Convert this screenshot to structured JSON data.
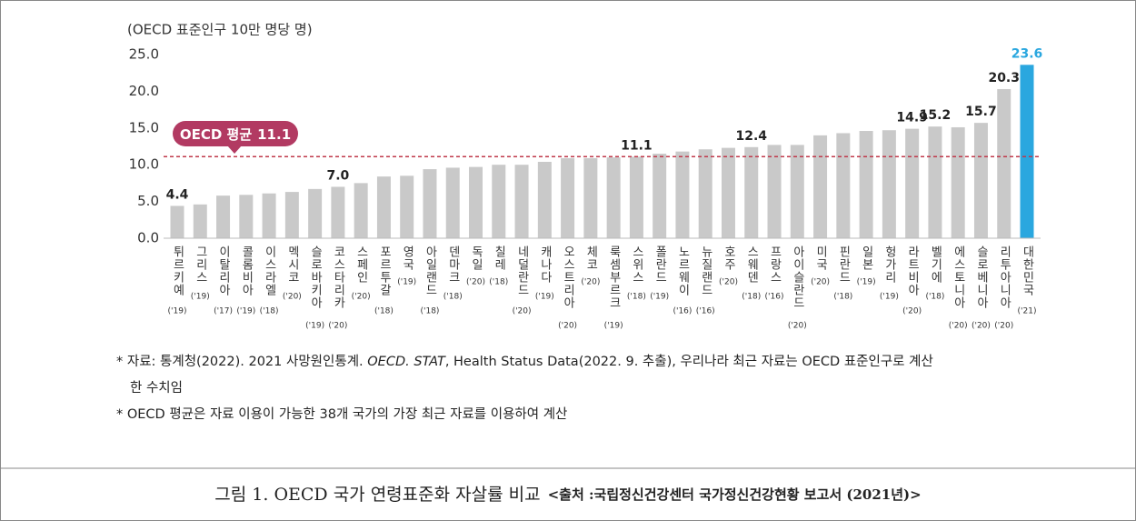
{
  "chart_data": {
    "type": "bar",
    "axis_label": "(OECD 표준인구 10만 명당 명)",
    "categories": [
      "튀르키예",
      "그리스",
      "이탈리아",
      "콜롬비아",
      "이스라엘",
      "멕시코",
      "슬로바키아",
      "코스타리카",
      "스페인",
      "포르투갈",
      "영국",
      "아일랜드",
      "덴마크",
      "독일",
      "칠레",
      "네덜란드",
      "캐나다",
      "오스트리아",
      "체코",
      "룩셈부르크",
      "스위스",
      "폴란드",
      "노르웨이",
      "뉴질랜드",
      "호주",
      "스웨덴",
      "프랑스",
      "아이슬란드",
      "미국",
      "핀란드",
      "일본",
      "헝가리",
      "라트비아",
      "벨기에",
      "에스토니아",
      "슬로베니아",
      "리투아니아",
      "대한민국"
    ],
    "years": [
      "('19)",
      "('19)",
      "('17)",
      "('19)",
      "('18)",
      "('20)",
      "('19)",
      "('20)",
      "('20)",
      "('18)",
      "('19)",
      "('18)",
      "('18)",
      "('20)",
      "('18)",
      "('20)",
      "('19)",
      "('20)",
      "('20)",
      "('19)",
      "('18)",
      "('19)",
      "('16)",
      "('16)",
      "('20)",
      "('18)",
      "('16)",
      "('20)",
      "('20)",
      "('18)",
      "('19)",
      "('19)",
      "('20)",
      "('18)",
      "('20)",
      "('20)",
      "('20)",
      "('21)"
    ],
    "values": [
      4.4,
      4.6,
      5.8,
      5.9,
      6.1,
      6.3,
      6.7,
      7.0,
      7.5,
      8.4,
      8.5,
      9.4,
      9.6,
      9.7,
      10.0,
      10.0,
      10.4,
      10.9,
      10.9,
      11.0,
      11.1,
      11.5,
      11.8,
      12.1,
      12.3,
      12.4,
      12.7,
      12.7,
      14.0,
      14.3,
      14.6,
      14.7,
      14.9,
      15.2,
      15.1,
      15.7,
      20.3,
      23.6
    ],
    "value_labels": [
      "4.4",
      null,
      null,
      null,
      null,
      null,
      null,
      "7.0",
      null,
      null,
      null,
      null,
      null,
      null,
      null,
      null,
      null,
      null,
      null,
      null,
      "11.1",
      null,
      null,
      null,
      null,
      "12.4",
      null,
      null,
      null,
      null,
      null,
      null,
      "14.9",
      "15.2",
      null,
      "15.7",
      "20.3",
      "23.6"
    ],
    "color": "#c9c9c9",
    "highlight_category": "대한민국",
    "highlight_color": "#2aa7df",
    "ylim": [
      0,
      25
    ],
    "yticks": [
      {
        "value": 0,
        "label": "0.0"
      },
      {
        "value": 5,
        "label": "5.0"
      },
      {
        "value": 10,
        "label": "10.0"
      },
      {
        "value": 15,
        "label": "15.0"
      },
      {
        "value": 20,
        "label": "20.0"
      },
      {
        "value": 25,
        "label": "25.0"
      }
    ],
    "average": {
      "label": "OECD 평균",
      "value": 11.1,
      "value_label": "11.1",
      "color": "#b23a62"
    }
  },
  "notes": [
    [
      "* 자료: 통계청(2022). 2021 사망원인통계. ",
      "OECD. STAT",
      ", Health Status Data(2022. 9. 추출), 우리나라 최근 자료는 OECD 표준인구로 계산"
    ],
    [
      "한 수치임"
    ],
    [
      "* OECD 평균은 자료 이용이 가능한 38개 국가의 가장 최근 자료를 이용하여 계산"
    ]
  ],
  "caption": {
    "title": "그림 1. OECD 국가 연령표준화 자살률 비교",
    "source": "<출처 :국립정신건강센터 국가정신건강현황 보고서 (2021년)>"
  }
}
